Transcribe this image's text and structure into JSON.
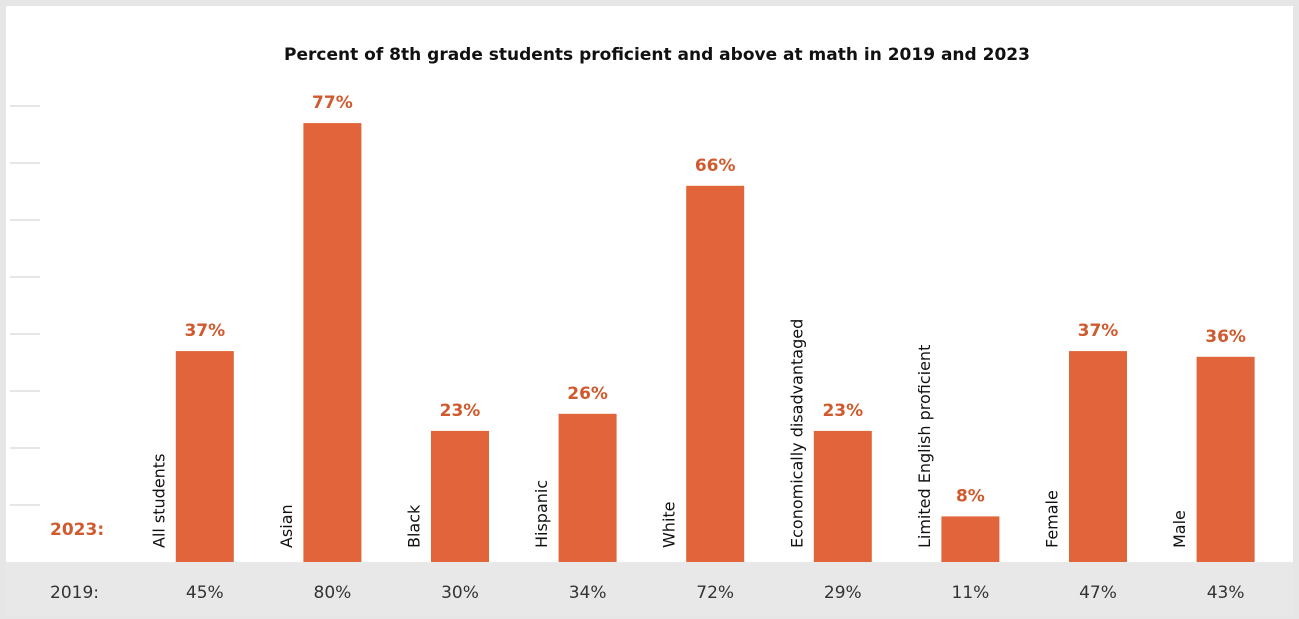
{
  "chart_data": {
    "type": "bar",
    "title": "Percent of 8th grade students proficient and above at math in 2019 and 2023",
    "categories": [
      "All students",
      "Asian",
      "Black",
      "Hispanic",
      "White",
      "Economically disadvantaged",
      "Limited English proficient",
      "Female",
      "Male"
    ],
    "series": [
      {
        "name": "2023:",
        "color": "#e2643a",
        "values": [
          37,
          77,
          23,
          26,
          66,
          23,
          8,
          37,
          36
        ],
        "value_labels": [
          "37%",
          "77%",
          "23%",
          "26%",
          "66%",
          "23%",
          "8%",
          "37%",
          "36%"
        ]
      },
      {
        "name": "2019:",
        "color": "#333333",
        "values": [
          45,
          80,
          30,
          34,
          72,
          29,
          11,
          47,
          43
        ],
        "value_labels": [
          "45%",
          "80%",
          "30%",
          "34%",
          "72%",
          "29%",
          "11%",
          "47%",
          "43%"
        ]
      }
    ],
    "ylim": [
      0,
      80
    ],
    "yticks": [
      10,
      20,
      30,
      40,
      50,
      60,
      70,
      80
    ]
  }
}
